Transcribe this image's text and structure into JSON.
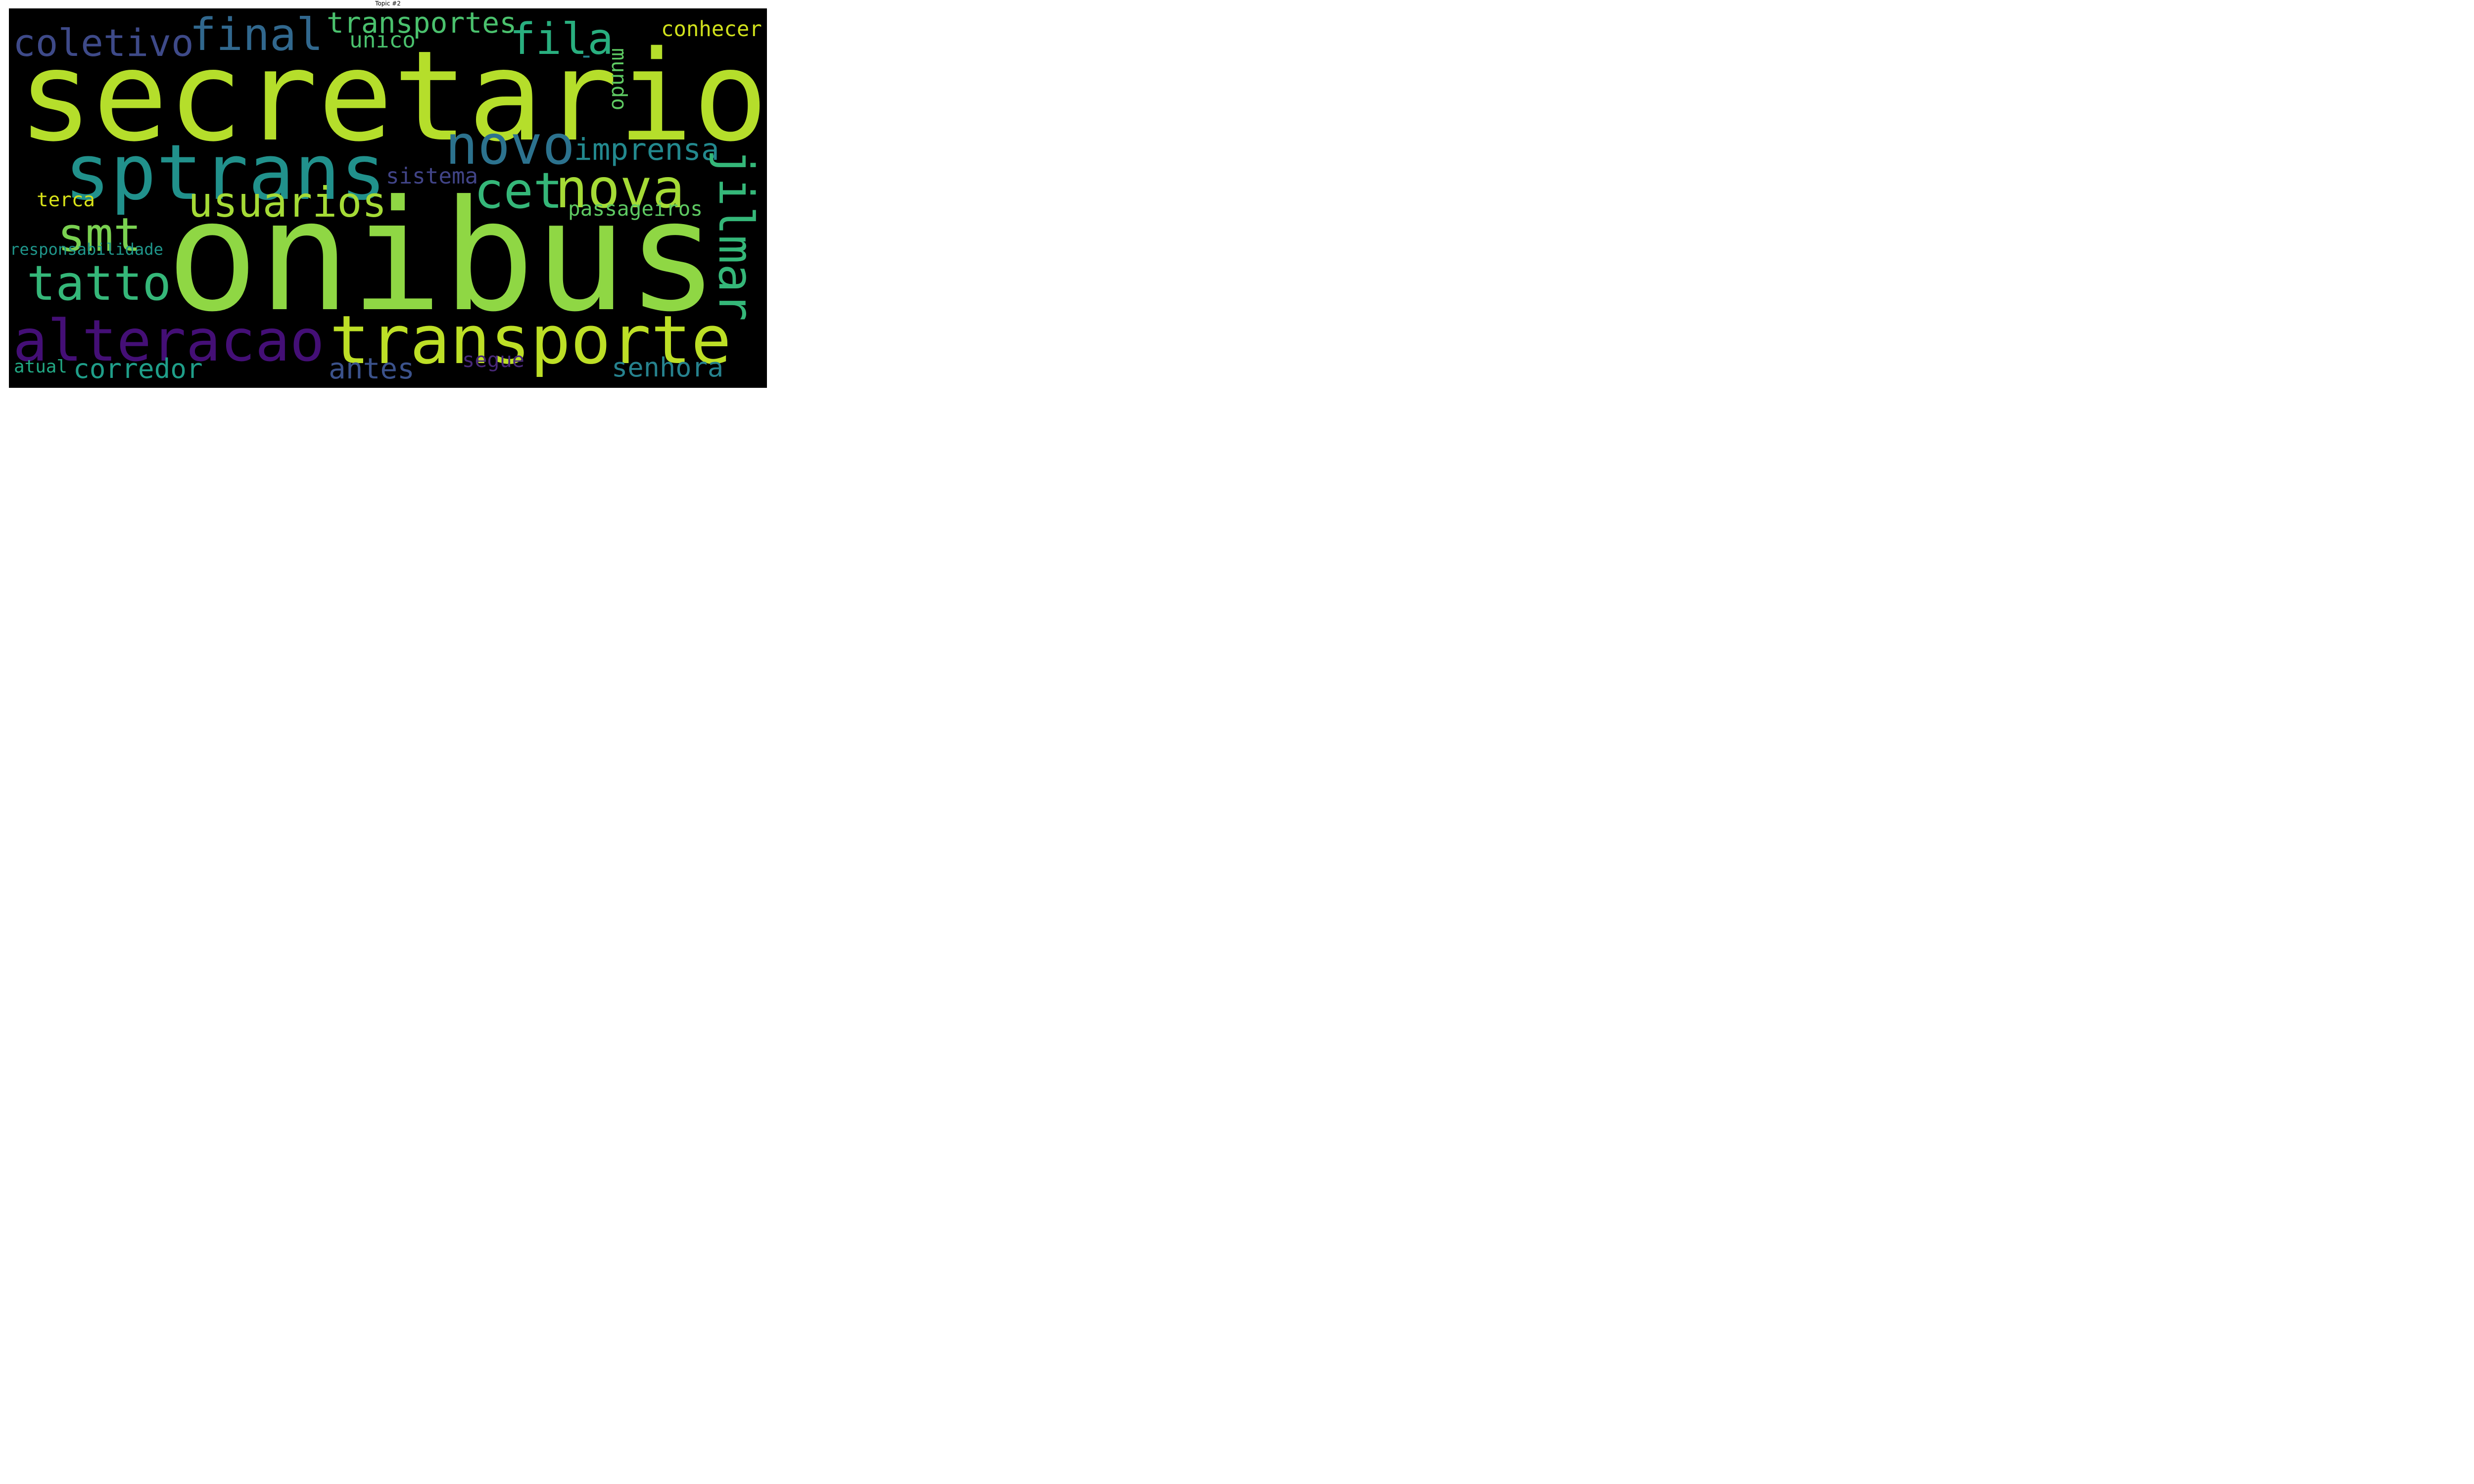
{
  "title": "Topic #2",
  "colors": {
    "background": "#000000"
  },
  "words": [
    {
      "id": "secretario",
      "text": "secretario",
      "color": "#b5de2b"
    },
    {
      "id": "onibus",
      "text": "onibus",
      "color": "#8fd744"
    },
    {
      "id": "sptrans",
      "text": "sptrans",
      "color": "#21918c"
    },
    {
      "id": "transporte",
      "text": "transporte",
      "color": "#bddf26"
    },
    {
      "id": "alteracao",
      "text": "alteracao",
      "color": "#440f76"
    },
    {
      "id": "final",
      "text": "final",
      "color": "#31688e"
    },
    {
      "id": "coletivo",
      "text": "coletivo",
      "color": "#3e4a89"
    },
    {
      "id": "transportes",
      "text": "transportes",
      "color": "#4ac16d"
    },
    {
      "id": "fila",
      "text": "fila",
      "color": "#29af7f"
    },
    {
      "id": "conhecer",
      "text": "conhecer",
      "color": "#d0e11c"
    },
    {
      "id": "unico",
      "text": "unico",
      "color": "#4ac16d"
    },
    {
      "id": "dash",
      "text": "-",
      "color": "#25848e"
    },
    {
      "id": "novo",
      "text": "novo",
      "color": "#2c728e"
    },
    {
      "id": "imprensa",
      "text": "imprensa",
      "color": "#23898e"
    },
    {
      "id": "jilmar",
      "text": "jilmar",
      "color": "#35b779"
    },
    {
      "id": "mundo",
      "text": "mundo",
      "color": "#5ec962"
    },
    {
      "id": "cet",
      "text": "cet",
      "color": "#35b779"
    },
    {
      "id": "nova",
      "text": "nova",
      "color": "#a5db36"
    },
    {
      "id": "usuarios",
      "text": "usuarios",
      "color": "#a5db36"
    },
    {
      "id": "smt",
      "text": "smt",
      "color": "#7ad151"
    },
    {
      "id": "tatto",
      "text": "tatto",
      "color": "#35b779"
    },
    {
      "id": "sistema",
      "text": "sistema",
      "color": "#414487"
    },
    {
      "id": "terca",
      "text": "terca",
      "color": "#d8e219"
    },
    {
      "id": "passageiros",
      "text": "passageiros",
      "color": "#5ec962"
    },
    {
      "id": "responsabilidade",
      "text": "responsabilidade",
      "color": "#1f968b"
    },
    {
      "id": "corredor",
      "text": "corredor",
      "color": "#1f9e89"
    },
    {
      "id": "antes",
      "text": "antes",
      "color": "#3b528b"
    },
    {
      "id": "segue",
      "text": "segue",
      "color": "#482878"
    },
    {
      "id": "senhora",
      "text": "senhora",
      "color": "#26828e"
    },
    {
      "id": "atual",
      "text": "atual",
      "color": "#22a884"
    }
  ]
}
